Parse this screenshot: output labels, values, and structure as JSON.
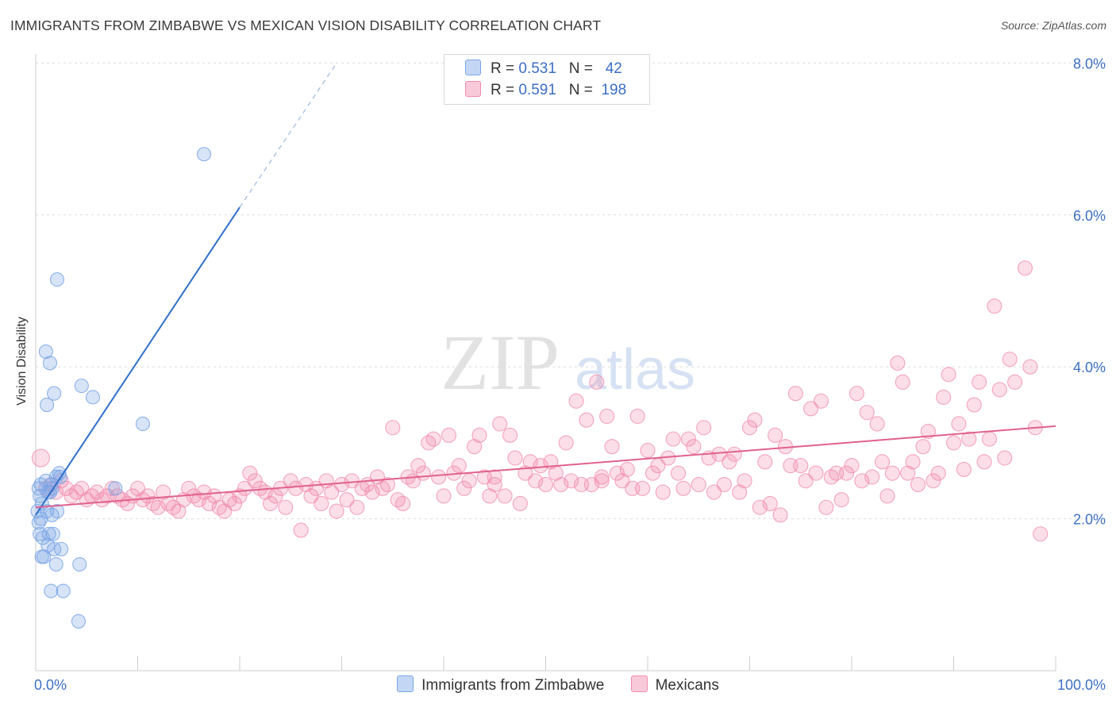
{
  "title": "IMMIGRANTS FROM ZIMBABWE VS MEXICAN VISION DISABILITY CORRELATION CHART",
  "source": "Source: ZipAtlas.com",
  "watermark": {
    "zip": "ZIP",
    "atlas": "atlas"
  },
  "legend": {
    "rows": [
      {
        "r_label": "R =",
        "r_value": "0.531",
        "n_label": "N =",
        "n_value": "42",
        "color": "#7aa6e6"
      },
      {
        "r_label": "R =",
        "r_value": "0.591",
        "n_label": "N =",
        "n_value": "198",
        "color": "#f08aab"
      }
    ]
  },
  "bottom_legend": [
    {
      "label": "Immigrants from Zimbabwe",
      "color": "#7aa6e6"
    },
    {
      "label": "Mexicans",
      "color": "#f08aab"
    }
  ],
  "chart_data": {
    "type": "scatter",
    "ylabel": "Vision Disability",
    "xlabel": "",
    "x_tick_labels": [
      "0.0%",
      "100.0%"
    ],
    "y_tick_labels": [
      "2.0%",
      "4.0%",
      "6.0%",
      "8.0%"
    ],
    "y_ticks": [
      2,
      4,
      6,
      8
    ],
    "xlim": [
      0,
      100
    ],
    "ylim": [
      0,
      8.2
    ],
    "grid": true,
    "legend_position": "top-center",
    "series": [
      {
        "name": "Immigrants from Zimbabwe",
        "color": "#7aa6e6",
        "line_color": "#2e6fc9",
        "trend": {
          "x0": 0,
          "y0": 2.05,
          "x1": 20,
          "y1": 6.1,
          "dash_to_x": 29.5,
          "dash_to_y": 8.0
        },
        "points": [
          [
            0.3,
            2.4
          ],
          [
            0.4,
            2.3
          ],
          [
            0.5,
            2.45
          ],
          [
            0.6,
            2.2
          ],
          [
            0.2,
            2.1
          ],
          [
            0.3,
            1.95
          ],
          [
            0.5,
            2.0
          ],
          [
            0.4,
            1.8
          ],
          [
            0.7,
            1.75
          ],
          [
            0.8,
            1.5
          ],
          [
            0.6,
            1.5
          ],
          [
            1.0,
            2.5
          ],
          [
            1.2,
            2.35
          ],
          [
            1.1,
            2.1
          ],
          [
            1.3,
            1.8
          ],
          [
            1.2,
            1.65
          ],
          [
            1.5,
            2.45
          ],
          [
            1.6,
            2.05
          ],
          [
            1.7,
            1.8
          ],
          [
            1.8,
            1.6
          ],
          [
            2.0,
            2.55
          ],
          [
            2.3,
            2.6
          ],
          [
            2.4,
            2.55
          ],
          [
            2.1,
            2.1
          ],
          [
            1.4,
            2.35
          ],
          [
            1.0,
            4.2
          ],
          [
            1.4,
            4.05
          ],
          [
            1.1,
            3.5
          ],
          [
            1.8,
            3.65
          ],
          [
            2.1,
            5.15
          ],
          [
            4.5,
            3.75
          ],
          [
            5.6,
            3.6
          ],
          [
            2.5,
            1.6
          ],
          [
            2.0,
            1.4
          ],
          [
            4.3,
            1.4
          ],
          [
            1.5,
            1.05
          ],
          [
            2.7,
            1.05
          ],
          [
            4.2,
            0.65
          ],
          [
            7.8,
            2.4
          ],
          [
            10.5,
            3.25
          ],
          [
            16.5,
            6.8
          ],
          [
            1.6,
            2.4
          ]
        ]
      },
      {
        "name": "Mexicans",
        "color": "#f08aab",
        "line_color": "#e0618f",
        "trend": {
          "x0": 0,
          "y0": 2.15,
          "x1": 100,
          "y1": 3.22
        },
        "points": [
          [
            0.5,
            2.8
          ],
          [
            1.0,
            2.4
          ],
          [
            1.5,
            2.45
          ],
          [
            2.0,
            2.35
          ],
          [
            2.5,
            2.5
          ],
          [
            3.0,
            2.4
          ],
          [
            3.5,
            2.3
          ],
          [
            4.0,
            2.35
          ],
          [
            4.5,
            2.4
          ],
          [
            5.0,
            2.25
          ],
          [
            5.5,
            2.3
          ],
          [
            6.0,
            2.35
          ],
          [
            6.5,
            2.25
          ],
          [
            7.0,
            2.3
          ],
          [
            7.5,
            2.4
          ],
          [
            8.0,
            2.3
          ],
          [
            8.5,
            2.25
          ],
          [
            9.0,
            2.2
          ],
          [
            9.5,
            2.3
          ],
          [
            10.0,
            2.4
          ],
          [
            10.5,
            2.25
          ],
          [
            11.0,
            2.3
          ],
          [
            11.5,
            2.2
          ],
          [
            12.0,
            2.15
          ],
          [
            12.5,
            2.35
          ],
          [
            13.0,
            2.2
          ],
          [
            13.5,
            2.15
          ],
          [
            14.0,
            2.1
          ],
          [
            14.5,
            2.25
          ],
          [
            15.0,
            2.4
          ],
          [
            15.5,
            2.3
          ],
          [
            16.0,
            2.25
          ],
          [
            16.5,
            2.35
          ],
          [
            17.0,
            2.2
          ],
          [
            17.5,
            2.3
          ],
          [
            18.0,
            2.15
          ],
          [
            18.5,
            2.1
          ],
          [
            19.0,
            2.25
          ],
          [
            19.5,
            2.2
          ],
          [
            20.0,
            2.3
          ],
          [
            20.5,
            2.4
          ],
          [
            21.0,
            2.6
          ],
          [
            21.5,
            2.5
          ],
          [
            22.0,
            2.4
          ],
          [
            22.5,
            2.35
          ],
          [
            23.0,
            2.2
          ],
          [
            23.5,
            2.3
          ],
          [
            24.0,
            2.4
          ],
          [
            24.5,
            2.15
          ],
          [
            25.0,
            2.5
          ],
          [
            25.5,
            2.4
          ],
          [
            26.0,
            1.85
          ],
          [
            26.5,
            2.45
          ],
          [
            27.0,
            2.3
          ],
          [
            27.5,
            2.4
          ],
          [
            28.0,
            2.2
          ],
          [
            28.5,
            2.5
          ],
          [
            29.0,
            2.35
          ],
          [
            29.5,
            2.1
          ],
          [
            30.0,
            2.45
          ],
          [
            30.5,
            2.25
          ],
          [
            31.0,
            2.5
          ],
          [
            31.5,
            2.15
          ],
          [
            32.0,
            2.4
          ],
          [
            32.5,
            2.45
          ],
          [
            33.0,
            2.35
          ],
          [
            33.5,
            2.55
          ],
          [
            34.0,
            2.4
          ],
          [
            34.5,
            2.45
          ],
          [
            35.0,
            3.2
          ],
          [
            35.5,
            2.25
          ],
          [
            36.0,
            2.2
          ],
          [
            36.5,
            2.55
          ],
          [
            37.0,
            2.5
          ],
          [
            37.5,
            2.7
          ],
          [
            38.0,
            2.6
          ],
          [
            38.5,
            3.0
          ],
          [
            39.0,
            3.05
          ],
          [
            39.5,
            2.55
          ],
          [
            40.0,
            2.3
          ],
          [
            40.5,
            3.1
          ],
          [
            41.0,
            2.6
          ],
          [
            41.5,
            2.7
          ],
          [
            42.0,
            2.4
          ],
          [
            42.5,
            2.5
          ],
          [
            43.0,
            2.95
          ],
          [
            43.5,
            3.1
          ],
          [
            44.0,
            2.55
          ],
          [
            44.5,
            2.3
          ],
          [
            45.0,
            2.45
          ],
          [
            45.5,
            3.25
          ],
          [
            46.0,
            2.3
          ],
          [
            46.5,
            3.1
          ],
          [
            47.0,
            2.8
          ],
          [
            47.5,
            2.2
          ],
          [
            48.0,
            2.6
          ],
          [
            48.5,
            2.75
          ],
          [
            49.0,
            2.5
          ],
          [
            49.5,
            2.7
          ],
          [
            50.0,
            2.45
          ],
          [
            50.5,
            2.75
          ],
          [
            51.0,
            2.6
          ],
          [
            51.5,
            2.45
          ],
          [
            52.0,
            3.0
          ],
          [
            52.5,
            2.5
          ],
          [
            53.0,
            3.55
          ],
          [
            53.5,
            2.45
          ],
          [
            54.0,
            3.3
          ],
          [
            54.5,
            2.45
          ],
          [
            55.0,
            3.8
          ],
          [
            55.5,
            2.5
          ],
          [
            56.0,
            3.35
          ],
          [
            56.5,
            2.95
          ],
          [
            57.0,
            2.6
          ],
          [
            57.5,
            2.5
          ],
          [
            58.0,
            2.65
          ],
          [
            58.5,
            2.4
          ],
          [
            59.0,
            3.35
          ],
          [
            59.5,
            2.4
          ],
          [
            60.0,
            2.9
          ],
          [
            60.5,
            2.6
          ],
          [
            61.0,
            2.7
          ],
          [
            61.5,
            2.35
          ],
          [
            62.0,
            2.8
          ],
          [
            62.5,
            3.05
          ],
          [
            63.0,
            2.6
          ],
          [
            63.5,
            2.4
          ],
          [
            64.0,
            3.05
          ],
          [
            64.5,
            2.95
          ],
          [
            65.0,
            2.45
          ],
          [
            65.5,
            3.2
          ],
          [
            66.0,
            2.8
          ],
          [
            66.5,
            2.35
          ],
          [
            67.0,
            2.85
          ],
          [
            67.5,
            2.45
          ],
          [
            68.0,
            2.75
          ],
          [
            68.5,
            2.85
          ],
          [
            69.0,
            2.35
          ],
          [
            69.5,
            2.5
          ],
          [
            70.0,
            3.2
          ],
          [
            70.5,
            3.3
          ],
          [
            71.0,
            2.15
          ],
          [
            71.5,
            2.75
          ],
          [
            72.0,
            2.2
          ],
          [
            72.5,
            3.1
          ],
          [
            73.0,
            2.05
          ],
          [
            73.5,
            2.95
          ],
          [
            74.0,
            2.7
          ],
          [
            74.5,
            3.65
          ],
          [
            75.0,
            2.7
          ],
          [
            75.5,
            2.5
          ],
          [
            76.0,
            3.45
          ],
          [
            76.5,
            2.6
          ],
          [
            77.0,
            3.55
          ],
          [
            77.5,
            2.15
          ],
          [
            78.0,
            2.55
          ],
          [
            78.5,
            2.6
          ],
          [
            79.0,
            2.25
          ],
          [
            79.5,
            2.6
          ],
          [
            80.0,
            2.7
          ],
          [
            80.5,
            3.65
          ],
          [
            81.0,
            2.5
          ],
          [
            81.5,
            3.4
          ],
          [
            82.0,
            2.55
          ],
          [
            82.5,
            3.25
          ],
          [
            83.0,
            2.75
          ],
          [
            83.5,
            2.3
          ],
          [
            84.0,
            2.6
          ],
          [
            84.5,
            4.05
          ],
          [
            85.0,
            3.8
          ],
          [
            85.5,
            2.6
          ],
          [
            86.0,
            2.75
          ],
          [
            86.5,
            2.45
          ],
          [
            87.0,
            2.95
          ],
          [
            87.5,
            3.15
          ],
          [
            88.0,
            2.5
          ],
          [
            88.5,
            2.6
          ],
          [
            89.0,
            3.6
          ],
          [
            89.5,
            3.9
          ],
          [
            90.0,
            3.0
          ],
          [
            90.5,
            3.25
          ],
          [
            91.0,
            2.65
          ],
          [
            91.5,
            3.05
          ],
          [
            92.0,
            3.5
          ],
          [
            92.5,
            3.8
          ],
          [
            93.0,
            2.75
          ],
          [
            93.5,
            3.05
          ],
          [
            94.0,
            4.8
          ],
          [
            94.5,
            3.7
          ],
          [
            95.0,
            2.8
          ],
          [
            95.5,
            4.1
          ],
          [
            96.0,
            3.8
          ],
          [
            97.0,
            5.3
          ],
          [
            97.5,
            4.0
          ],
          [
            98.0,
            3.2
          ],
          [
            98.5,
            1.8
          ],
          [
            55.5,
            2.55
          ],
          [
            45.0,
            2.55
          ]
        ]
      }
    ]
  }
}
